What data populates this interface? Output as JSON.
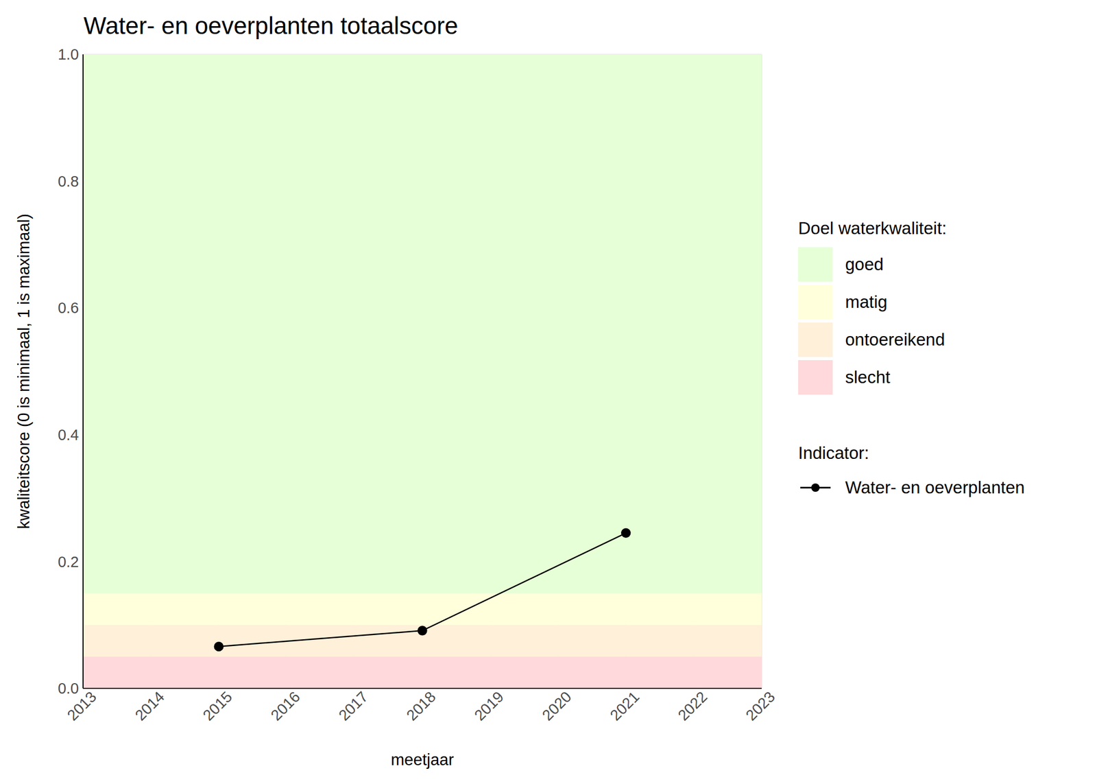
{
  "chart_data": {
    "type": "line",
    "title": "Water- en oeverplanten totaalscore",
    "x_label": "meetjaar",
    "y_label": "kwaliteitscore (0 is minimaal, 1 is maximaal)",
    "x": [
      2015,
      2018,
      2021
    ],
    "series": [
      {
        "name": "Water- en oeverplanten",
        "color": "#000000",
        "values": [
          0.066,
          0.091,
          0.245
        ],
        "marker": "circle",
        "line_style": "solid"
      }
    ],
    "xlim": [
      2013,
      2023
    ],
    "xticks": [
      2013,
      2014,
      2015,
      2016,
      2017,
      2018,
      2019,
      2020,
      2021,
      2022,
      2023
    ],
    "ylim": [
      0,
      1
    ],
    "yticks": [
      {
        "value": 0,
        "label": "0.0"
      },
      0.2,
      0.4,
      0.6,
      0.8,
      {
        "value": 1,
        "label": "1.0"
      }
    ],
    "grid": true,
    "legend": "right",
    "band_legend_title": "Doel waterkwaliteit:",
    "series_legend_title": "Indicator:",
    "bands": [
      {
        "name": "goed",
        "color": "#e6ffd6",
        "from": 0.15,
        "to": 1
      },
      {
        "name": "matig",
        "color": "#ffffdb",
        "from": 0.1,
        "to": 0.15
      },
      {
        "name": "ontoereikend",
        "color": "#fff0d9",
        "from": 0.05,
        "to": 0.1
      },
      {
        "name": "slecht",
        "color": "#ffd9db",
        "from": 0,
        "to": 0.05
      }
    ]
  }
}
